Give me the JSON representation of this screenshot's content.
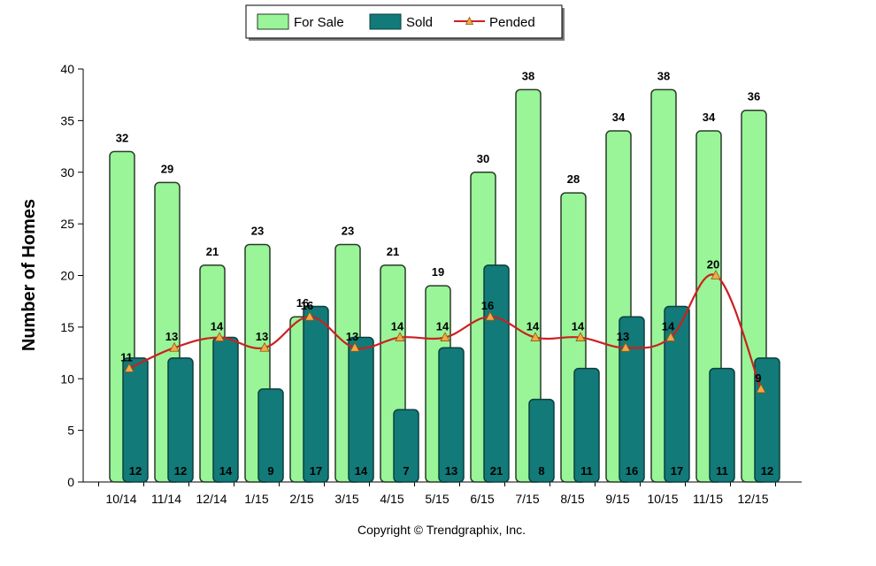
{
  "chart_data": {
    "type": "bar",
    "categories": [
      "10/14",
      "11/14",
      "12/14",
      "1/15",
      "2/15",
      "3/15",
      "4/15",
      "5/15",
      "6/15",
      "7/15",
      "8/15",
      "9/15",
      "10/15",
      "11/15",
      "12/15"
    ],
    "series": [
      {
        "name": "For Sale",
        "type": "bar",
        "values": [
          32,
          29,
          21,
          23,
          16,
          23,
          21,
          19,
          30,
          38,
          28,
          34,
          38,
          34,
          36
        ],
        "color": "#99f598",
        "stroke": "#2a3a2a"
      },
      {
        "name": "Sold",
        "type": "bar",
        "values": [
          12,
          12,
          14,
          9,
          17,
          14,
          7,
          13,
          21,
          8,
          11,
          16,
          17,
          11,
          12
        ],
        "color": "#127a78",
        "stroke": "#0b3f3e"
      },
      {
        "name": "Pended",
        "type": "line",
        "values": [
          11,
          13,
          14,
          13,
          16,
          13,
          14,
          14,
          16,
          14,
          14,
          13,
          14,
          20,
          9
        ],
        "color": "#cc2020",
        "marker_color": "#f4a848"
      }
    ],
    "ylabel": "Number of Homes",
    "xlabel": "",
    "ylim": [
      0,
      40
    ],
    "yticks": [
      0,
      5,
      10,
      15,
      20,
      25,
      30,
      35,
      40
    ],
    "legend_position": "top-center",
    "grid": false
  },
  "footer": {
    "copyright": "Copyright © Trendgraphix, Inc."
  }
}
